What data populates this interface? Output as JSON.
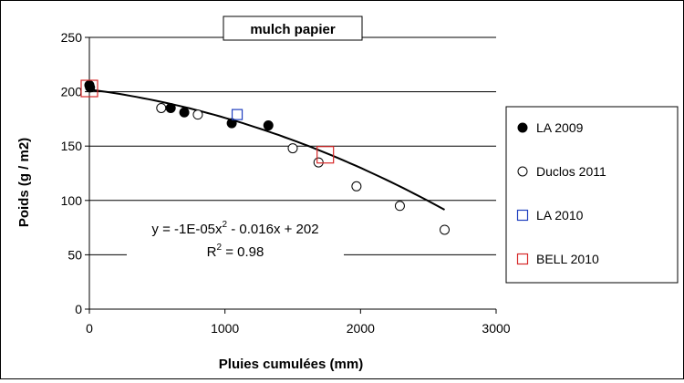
{
  "chart_data": {
    "type": "scatter",
    "title": "mulch papier",
    "xlabel": "Pluies cumulées (mm)",
    "ylabel": "Poids (g / m2)",
    "xlim": [
      0,
      3000
    ],
    "ylim": [
      0,
      250
    ],
    "xticks": [
      "0",
      "1000",
      "2000",
      "3000"
    ],
    "yticks": [
      "0",
      "50",
      "100",
      "150",
      "200",
      "250"
    ],
    "grid": "horizontal",
    "legend_position": "right",
    "equation": {
      "line1_prefix": "y = -1E-05x",
      "line1_sup": "2",
      "line1_suffix": " - 0.016x + 202",
      "line2_prefix": "R",
      "line2_sup": "2",
      "line2_suffix": " = 0.98"
    },
    "trendline": {
      "a": -1e-05,
      "b": -0.016,
      "c": 202,
      "x_range": [
        0,
        2620
      ]
    },
    "series": [
      {
        "name": "LA 2009",
        "marker": "filled-circle",
        "color": "#000000",
        "points": [
          [
            0,
            206
          ],
          [
            5,
            204
          ],
          [
            600,
            185
          ],
          [
            700,
            181
          ],
          [
            1050,
            171
          ],
          [
            1320,
            169
          ]
        ]
      },
      {
        "name": "Duclos 2011",
        "marker": "open-circle",
        "color": "#000000",
        "points": [
          [
            530,
            185
          ],
          [
            800,
            179
          ],
          [
            1500,
            148
          ],
          [
            1690,
            135
          ],
          [
            1970,
            113
          ],
          [
            2290,
            95
          ],
          [
            2620,
            73
          ]
        ]
      },
      {
        "name": "LA 2010",
        "marker": "open-square",
        "color": "#1f3fbf",
        "points": [
          [
            1090,
            179
          ]
        ]
      },
      {
        "name": "BELL 2010",
        "marker": "open-square",
        "color": "#d62828",
        "points": [
          [
            0,
            203
          ],
          [
            1740,
            142
          ]
        ]
      }
    ]
  }
}
